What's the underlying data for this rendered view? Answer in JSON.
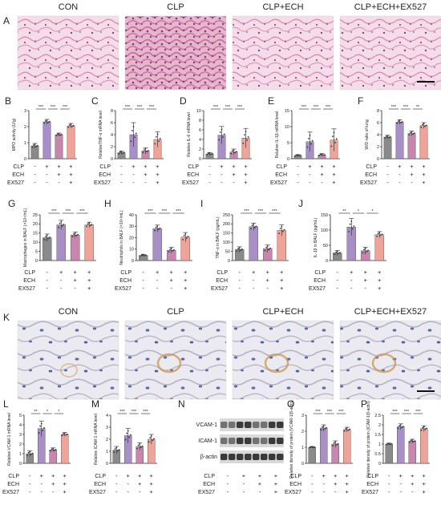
{
  "figure": {
    "row1": {
      "letter": "A",
      "headers": [
        "CON",
        "CLP",
        "CLP+ECH",
        "CLP+ECH+EX527"
      ]
    },
    "row2": {
      "letters": [
        "B",
        "C",
        "D",
        "E",
        "F"
      ],
      "row_labels": [
        "CLP",
        "ECH",
        "EX527"
      ],
      "signs": [
        [
          "-",
          "+",
          "+",
          "+"
        ],
        [
          "-",
          "-",
          "+",
          "+"
        ],
        [
          "-",
          "-",
          "-",
          "+"
        ]
      ],
      "charts": [
        {
          "ylabel": "MPO activity (U/g)",
          "ylim": [
            0,
            3
          ],
          "ticks": [
            0,
            1,
            2,
            3
          ],
          "values": [
            0.8,
            2.3,
            1.5,
            2.05
          ],
          "errors": [
            0.15,
            0.15,
            0.1,
            0.15
          ],
          "sig": [
            "***",
            "***",
            "***"
          ]
        },
        {
          "ylabel": "RelativeTNF-α mRNA level",
          "ylim": [
            0,
            8
          ],
          "ticks": [
            0,
            2,
            4,
            6,
            8
          ],
          "values": [
            1.0,
            4.0,
            1.3,
            3.2
          ],
          "errors": [
            0.3,
            2.0,
            0.5,
            1.3
          ],
          "sig": [
            "***",
            "***",
            "***"
          ]
        },
        {
          "ylabel": "Relative IL-6 mRNA level",
          "ylim": [
            0,
            10
          ],
          "ticks": [
            0,
            2,
            4,
            6,
            8,
            10
          ],
          "values": [
            1.0,
            4.9,
            1.4,
            4.3
          ],
          "errors": [
            0.3,
            1.8,
            0.6,
            2.0
          ],
          "sig": [
            "***",
            "***",
            "***"
          ]
        },
        {
          "ylabel": "Relative IL-1β mRNA level",
          "ylim": [
            0,
            15
          ],
          "ticks": [
            0,
            5,
            10,
            15
          ],
          "values": [
            1.0,
            5.3,
            1.2,
            5.8
          ],
          "errors": [
            0.3,
            3.0,
            0.4,
            3.5
          ],
          "sig": [
            "***",
            "***",
            "***"
          ]
        },
        {
          "ylabel": "W/D ratio of lung",
          "ylim": [
            0,
            8
          ],
          "ticks": [
            0,
            2,
            4,
            6,
            8
          ],
          "values": [
            3.6,
            6.1,
            4.2,
            5.5
          ],
          "errors": [
            0.3,
            0.4,
            0.4,
            0.5
          ],
          "sig": [
            "***",
            "***",
            "**"
          ]
        }
      ]
    },
    "row3": {
      "letters": [
        "G",
        "H",
        "I",
        "J"
      ],
      "row_labels": [
        "CLP",
        "ECH",
        "EX527"
      ],
      "signs": [
        [
          "-",
          "+",
          "+",
          "+"
        ],
        [
          "-",
          "-",
          "+",
          "+"
        ],
        [
          "-",
          "-",
          "-",
          "+"
        ]
      ],
      "charts": [
        {
          "ylabel": "Macrophages in BALF (×10⁴/mL)",
          "ylim": [
            0,
            25
          ],
          "ticks": [
            0,
            5,
            10,
            15,
            20,
            25
          ],
          "values": [
            12.5,
            19.5,
            14.0,
            19.5
          ],
          "errors": [
            2.0,
            2.5,
            1.5,
            1.5
          ],
          "sig": [
            "***",
            "***",
            "***"
          ]
        },
        {
          "ylabel": "Neutrophils in BALF (×10⁴/mL)",
          "ylim": [
            0,
            40
          ],
          "ticks": [
            0,
            10,
            20,
            30,
            40
          ],
          "values": [
            4.5,
            28.0,
            9.0,
            20.5
          ],
          "errors": [
            1.0,
            3.0,
            2.5,
            4.0
          ],
          "sig": [
            "***",
            "***",
            "***"
          ]
        },
        {
          "ylabel": "TNF-α in BALF (pg/mL)",
          "ylim": [
            0,
            250
          ],
          "ticks": [
            0,
            50,
            100,
            150,
            200,
            250
          ],
          "values": [
            60,
            185,
            65,
            165
          ],
          "errors": [
            15,
            20,
            20,
            30
          ],
          "sig": [
            "***",
            "***",
            "***"
          ]
        },
        {
          "ylabel": "IL-1β in BALF (pg/mL)",
          "ylim": [
            0,
            150
          ],
          "ticks": [
            0,
            50,
            100,
            150
          ],
          "values": [
            25,
            110,
            32,
            85
          ],
          "errors": [
            8,
            28,
            12,
            10
          ],
          "sig": [
            "**",
            "*",
            "*"
          ]
        }
      ]
    },
    "row4": {
      "letter": "K",
      "headers": [
        "CON",
        "CLP",
        "CLP+ECH",
        "CLP+ECH+EX527"
      ]
    },
    "row5": {
      "letters": [
        "L",
        "M",
        "N",
        "O",
        "P"
      ],
      "row_labels": [
        "CLP",
        "ECH",
        "EX527"
      ],
      "signs": [
        [
          "-",
          "+",
          "+",
          "+"
        ],
        [
          "-",
          "-",
          "+",
          "+"
        ],
        [
          "-",
          "-",
          "-",
          "+"
        ]
      ],
      "blot_labels": [
        "VCAM-1",
        "ICAM-1",
        "β-actin"
      ],
      "charts": [
        {
          "ylabel": "Relative VCAM-1 mRNA level",
          "ylim": [
            0,
            5
          ],
          "ticks": [
            0,
            1,
            2,
            3,
            4,
            5
          ],
          "values": [
            1.0,
            3.6,
            1.4,
            3.0
          ],
          "errors": [
            0.3,
            0.8,
            0.2,
            0.2
          ],
          "sig": [
            "**",
            "*",
            "*"
          ]
        },
        {
          "ylabel": "Relative ICAM-1 mRNA level",
          "ylim": [
            0,
            4
          ],
          "ticks": [
            0,
            1,
            2,
            3,
            4
          ],
          "values": [
            1.1,
            2.3,
            1.4,
            2.0
          ],
          "errors": [
            0.3,
            0.6,
            0.3,
            0.4
          ],
          "sig": [
            "***",
            "***",
            "***"
          ]
        },
        {
          "ylabel": "Relative density of protein (VCAM-1/β-actin)",
          "ylim": [
            0,
            3
          ],
          "ticks": [
            0,
            1,
            2,
            3
          ],
          "values": [
            1.0,
            2.2,
            1.2,
            2.1
          ],
          "errors": [
            0.05,
            0.2,
            0.2,
            0.15
          ],
          "sig": [
            "***",
            "***",
            "***"
          ]
        },
        {
          "ylabel": "Relative density of protein (ICAM-1/β-actin)",
          "ylim": [
            0,
            2.5
          ],
          "ticks": [
            0.0,
            0.5,
            1.0,
            1.5,
            2.0,
            2.5
          ],
          "values": [
            1.0,
            1.9,
            1.15,
            1.8
          ],
          "errors": [
            0.05,
            0.15,
            0.1,
            0.15
          ],
          "sig": [
            "***",
            "***",
            "***"
          ]
        }
      ]
    },
    "colors": {
      "bars": [
        "#8a8a8a",
        "#a98fc8",
        "#c686ad",
        "#efa49a"
      ],
      "ihc_bg": "#e4e2ea",
      "he_bg": "#f2d8e4"
    }
  }
}
